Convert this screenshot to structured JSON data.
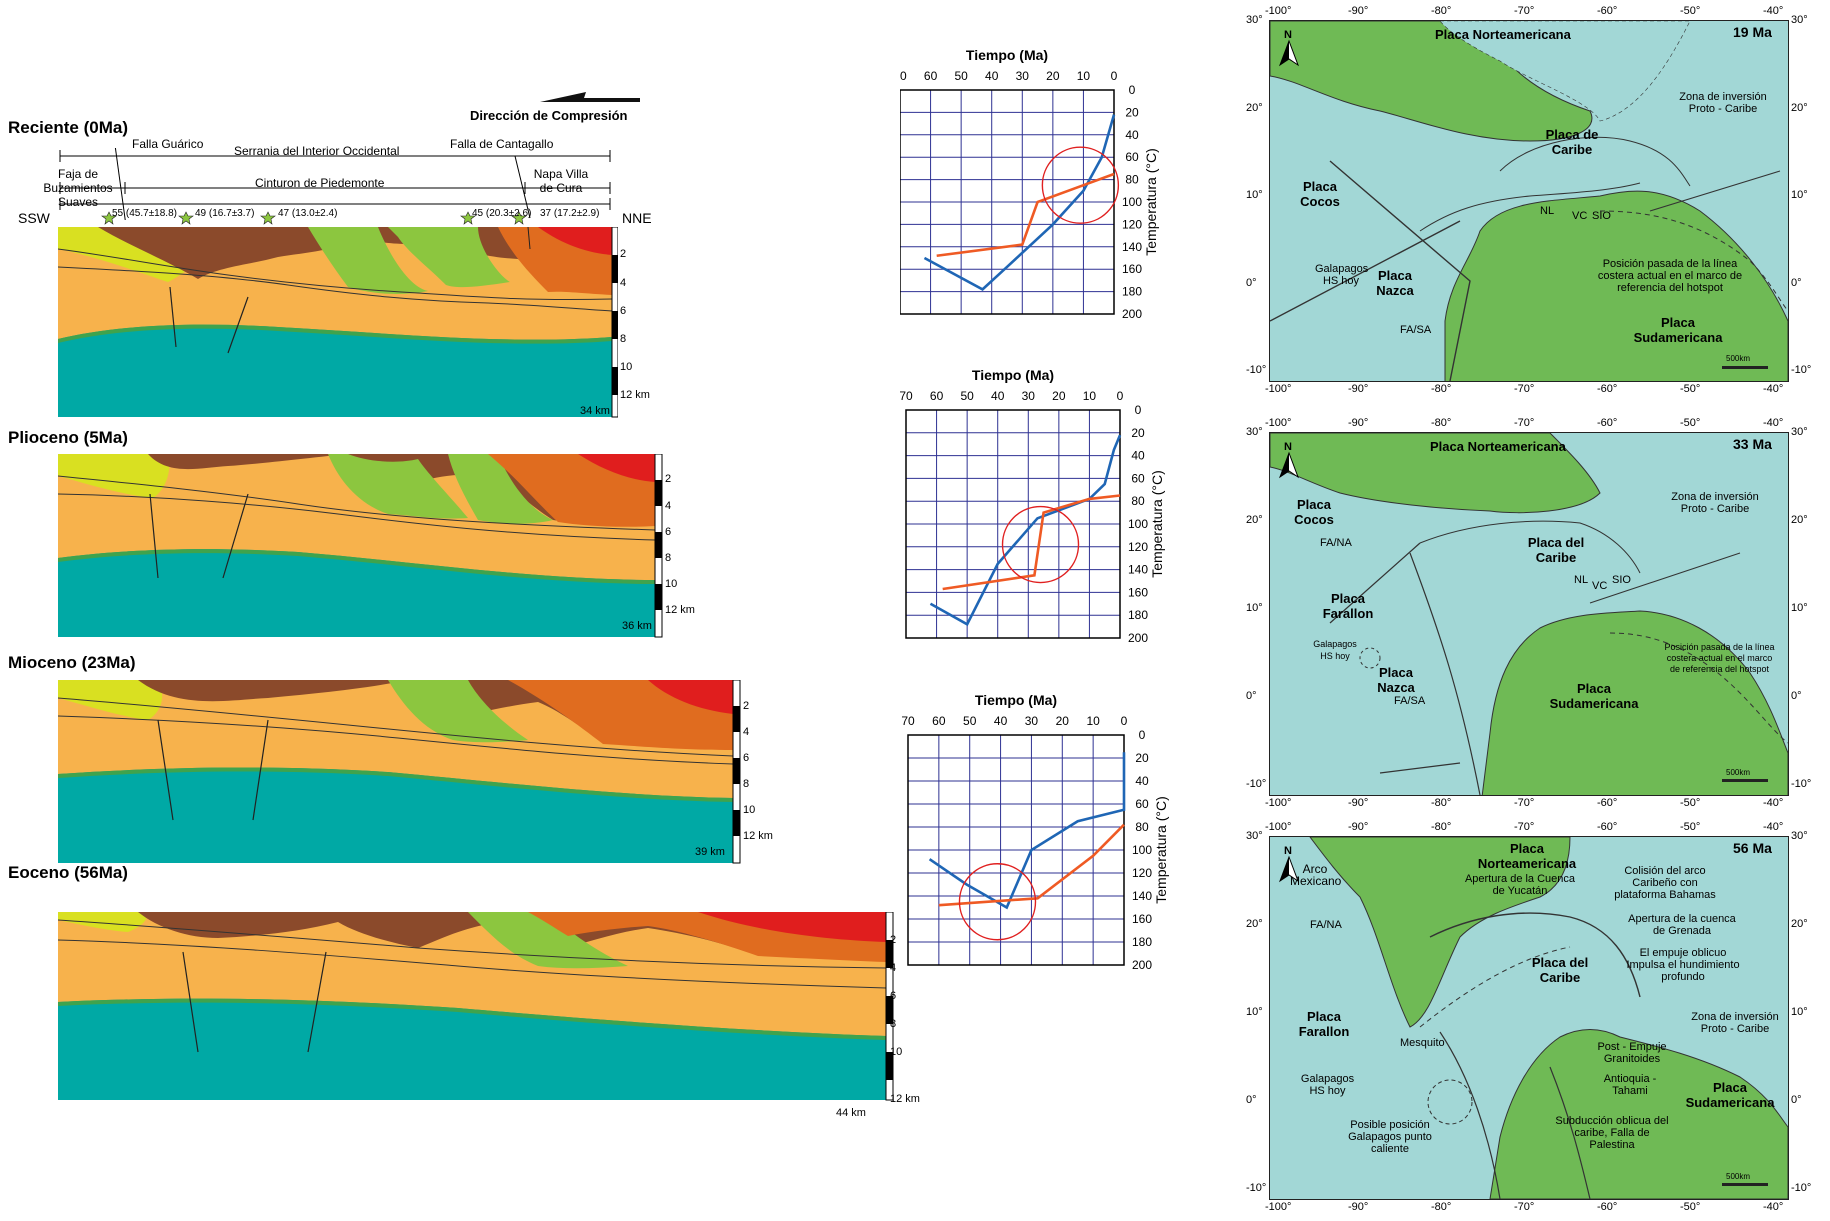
{
  "sections": [
    {
      "title": "Reciente (0Ma)",
      "width_label": "34 km"
    },
    {
      "title": "Plioceno (5Ma)",
      "width_label": "36 km"
    },
    {
      "title": "Mioceno (23Ma)",
      "width_label": "39 km"
    },
    {
      "title": "Eoceno (56Ma)",
      "width_label": "44 km"
    }
  ],
  "compression_label": "Dirección de Compresión",
  "section_labels": {
    "ssw": "SSW",
    "nne": "NNE",
    "falla_guarico": "Falla Guárico",
    "serrania": "Serrania del Interior Occidental",
    "falla_cantagallo": "Falla de Cantagallo",
    "faja": "Faja de Buzamientos Suaves",
    "cinturon": "Cinturon de Piedemonte",
    "napa": "Napa Villa de Cura"
  },
  "samples": [
    "55 (45.7±18.8)",
    "49 (16.7±3.7)",
    "47 (13.0±2.4)",
    "45 (20.3±2.6)",
    "37 (17.2±2.9)"
  ],
  "depth_ticks": [
    "2",
    "4",
    "6",
    "8",
    "10",
    "12 km"
  ],
  "colors": {
    "yellow": "#d9e021",
    "brown": "#8b4a2b",
    "green": "#8cc63f",
    "orange": "#e06c1f",
    "red": "#e01e1e",
    "sand": "#f7b24c",
    "teal": "#00a9a5",
    "sea": "#a2d7d6",
    "land": "#6fba55",
    "grid": "#2e3192",
    "path_blue": "#1f66b5",
    "path_orange": "#ef5a24",
    "circle": "#e02020"
  },
  "graphs": {
    "x_title": "Tiempo (Ma)",
    "y_title": "Temperatura (°C)",
    "x_ticks": [
      "70",
      "60",
      "50",
      "40",
      "30",
      "20",
      "10",
      "0"
    ],
    "y_ticks": [
      "0",
      "20",
      "40",
      "60",
      "80",
      "100",
      "120",
      "140",
      "160",
      "180",
      "200"
    ]
  },
  "chart_data": [
    {
      "type": "line",
      "title": "",
      "xlabel": "Tiempo (Ma)",
      "ylabel": "Temperatura (°C)",
      "xlim": [
        70,
        0
      ],
      "ylim": [
        0,
        200
      ],
      "series": [
        {
          "values": [
            [
              62,
              150
            ],
            [
              43,
              178
            ],
            [
              35,
              158
            ],
            [
              20,
              120
            ],
            [
              10,
              90
            ],
            [
              4,
              60
            ],
            [
              0,
              22
            ]
          ]
        },
        {
          "values": [
            [
              58,
              148
            ],
            [
              30,
              138
            ],
            [
              25,
              100
            ],
            [
              10,
              85
            ],
            [
              0,
              75
            ]
          ]
        }
      ],
      "annotation_circle": {
        "x": 11,
        "y": 85
      }
    },
    {
      "type": "line",
      "title": "",
      "xlabel": "Tiempo (Ma)",
      "ylabel": "Temperatura (°C)",
      "xlim": [
        70,
        0
      ],
      "ylim": [
        0,
        200
      ],
      "series": [
        {
          "values": [
            [
              62,
              170
            ],
            [
              50,
              188
            ],
            [
              40,
              135
            ],
            [
              27,
              95
            ],
            [
              10,
              78
            ],
            [
              5,
              65
            ],
            [
              2,
              35
            ],
            [
              0,
              22
            ]
          ]
        },
        {
          "values": [
            [
              58,
              157
            ],
            [
              28,
              145
            ],
            [
              25,
              90
            ],
            [
              10,
              78
            ],
            [
              0,
              75
            ]
          ]
        }
      ],
      "annotation_circle": {
        "x": 26,
        "y": 118
      }
    },
    {
      "type": "line",
      "title": "",
      "xlabel": "Tiempo (Ma)",
      "ylabel": "Temperatura (°C)",
      "xlim": [
        70,
        0
      ],
      "ylim": [
        0,
        200
      ],
      "series": [
        {
          "values": [
            [
              63,
              108
            ],
            [
              51,
              130
            ],
            [
              38,
              150
            ],
            [
              30,
              100
            ],
            [
              15,
              75
            ],
            [
              0,
              65
            ],
            [
              0,
              15
            ]
          ]
        },
        {
          "values": [
            [
              60,
              148
            ],
            [
              28,
              142
            ],
            [
              10,
              105
            ],
            [
              0,
              78
            ]
          ]
        }
      ],
      "annotation_circle": {
        "x": 41,
        "y": 145
      }
    }
  ],
  "maps": [
    {
      "age": "19 Ma",
      "labels": [
        "Placa Norteamericana",
        "Placa de Caribe",
        "Placa Cocos",
        "Placa Nazca",
        "Placa Sudamericana",
        "Zona de inversión Proto - Caribe",
        "Galapagos HS hoy",
        "FA/SA",
        "NL",
        "VC",
        "SIO",
        "Posición pasada de la línea costera actual en el marco de referencia del hotspot"
      ]
    },
    {
      "age": "33 Ma",
      "labels": [
        "Placa Norteamericana",
        "Placa del Caribe",
        "Placa Cocos",
        "FA/NA",
        "Placa Farallon",
        "Galapagos HS hoy",
        "Placa Nazca",
        "FA/SA",
        "Placa Sudamericana",
        "Zona de inversión Proto - Caribe",
        "NL",
        "VC",
        "SIO",
        "Posición pasada de la línea costera actual en el marco de referencia del hotspot"
      ]
    },
    {
      "age": "56 Ma",
      "labels": [
        "Arco Mexicano",
        "FA/NA",
        "Placa Norteamericana",
        "Apertura de la Cuenca de Yucatán",
        "Colisión del arco Caribeño con plataforma Bahamas",
        "Apertura de la cuenca de Grenada",
        "El empuje oblicuo Impulsa el hundimiento profundo",
        "Placa del Caribe",
        "Zona de inversión Proto - Caribe",
        "Placa Farallon",
        "Mesquito",
        "Post - Empuje Granitoides",
        "Antioquia - Tahami",
        "Placa Sudamericana",
        "Galapagos HS hoy",
        "Posible posición Galapagos punto caliente",
        "Subducción oblicua del caribe, Falla de Palestina"
      ]
    }
  ],
  "map_axes": {
    "lon": [
      "-100°",
      "-90°",
      "-80°",
      "-70°",
      "-60°",
      "-50°",
      "-40°"
    ],
    "lat": [
      "30°",
      "20°",
      "10°",
      "0°",
      "-10°"
    ],
    "north": "N",
    "scale": "500km"
  }
}
